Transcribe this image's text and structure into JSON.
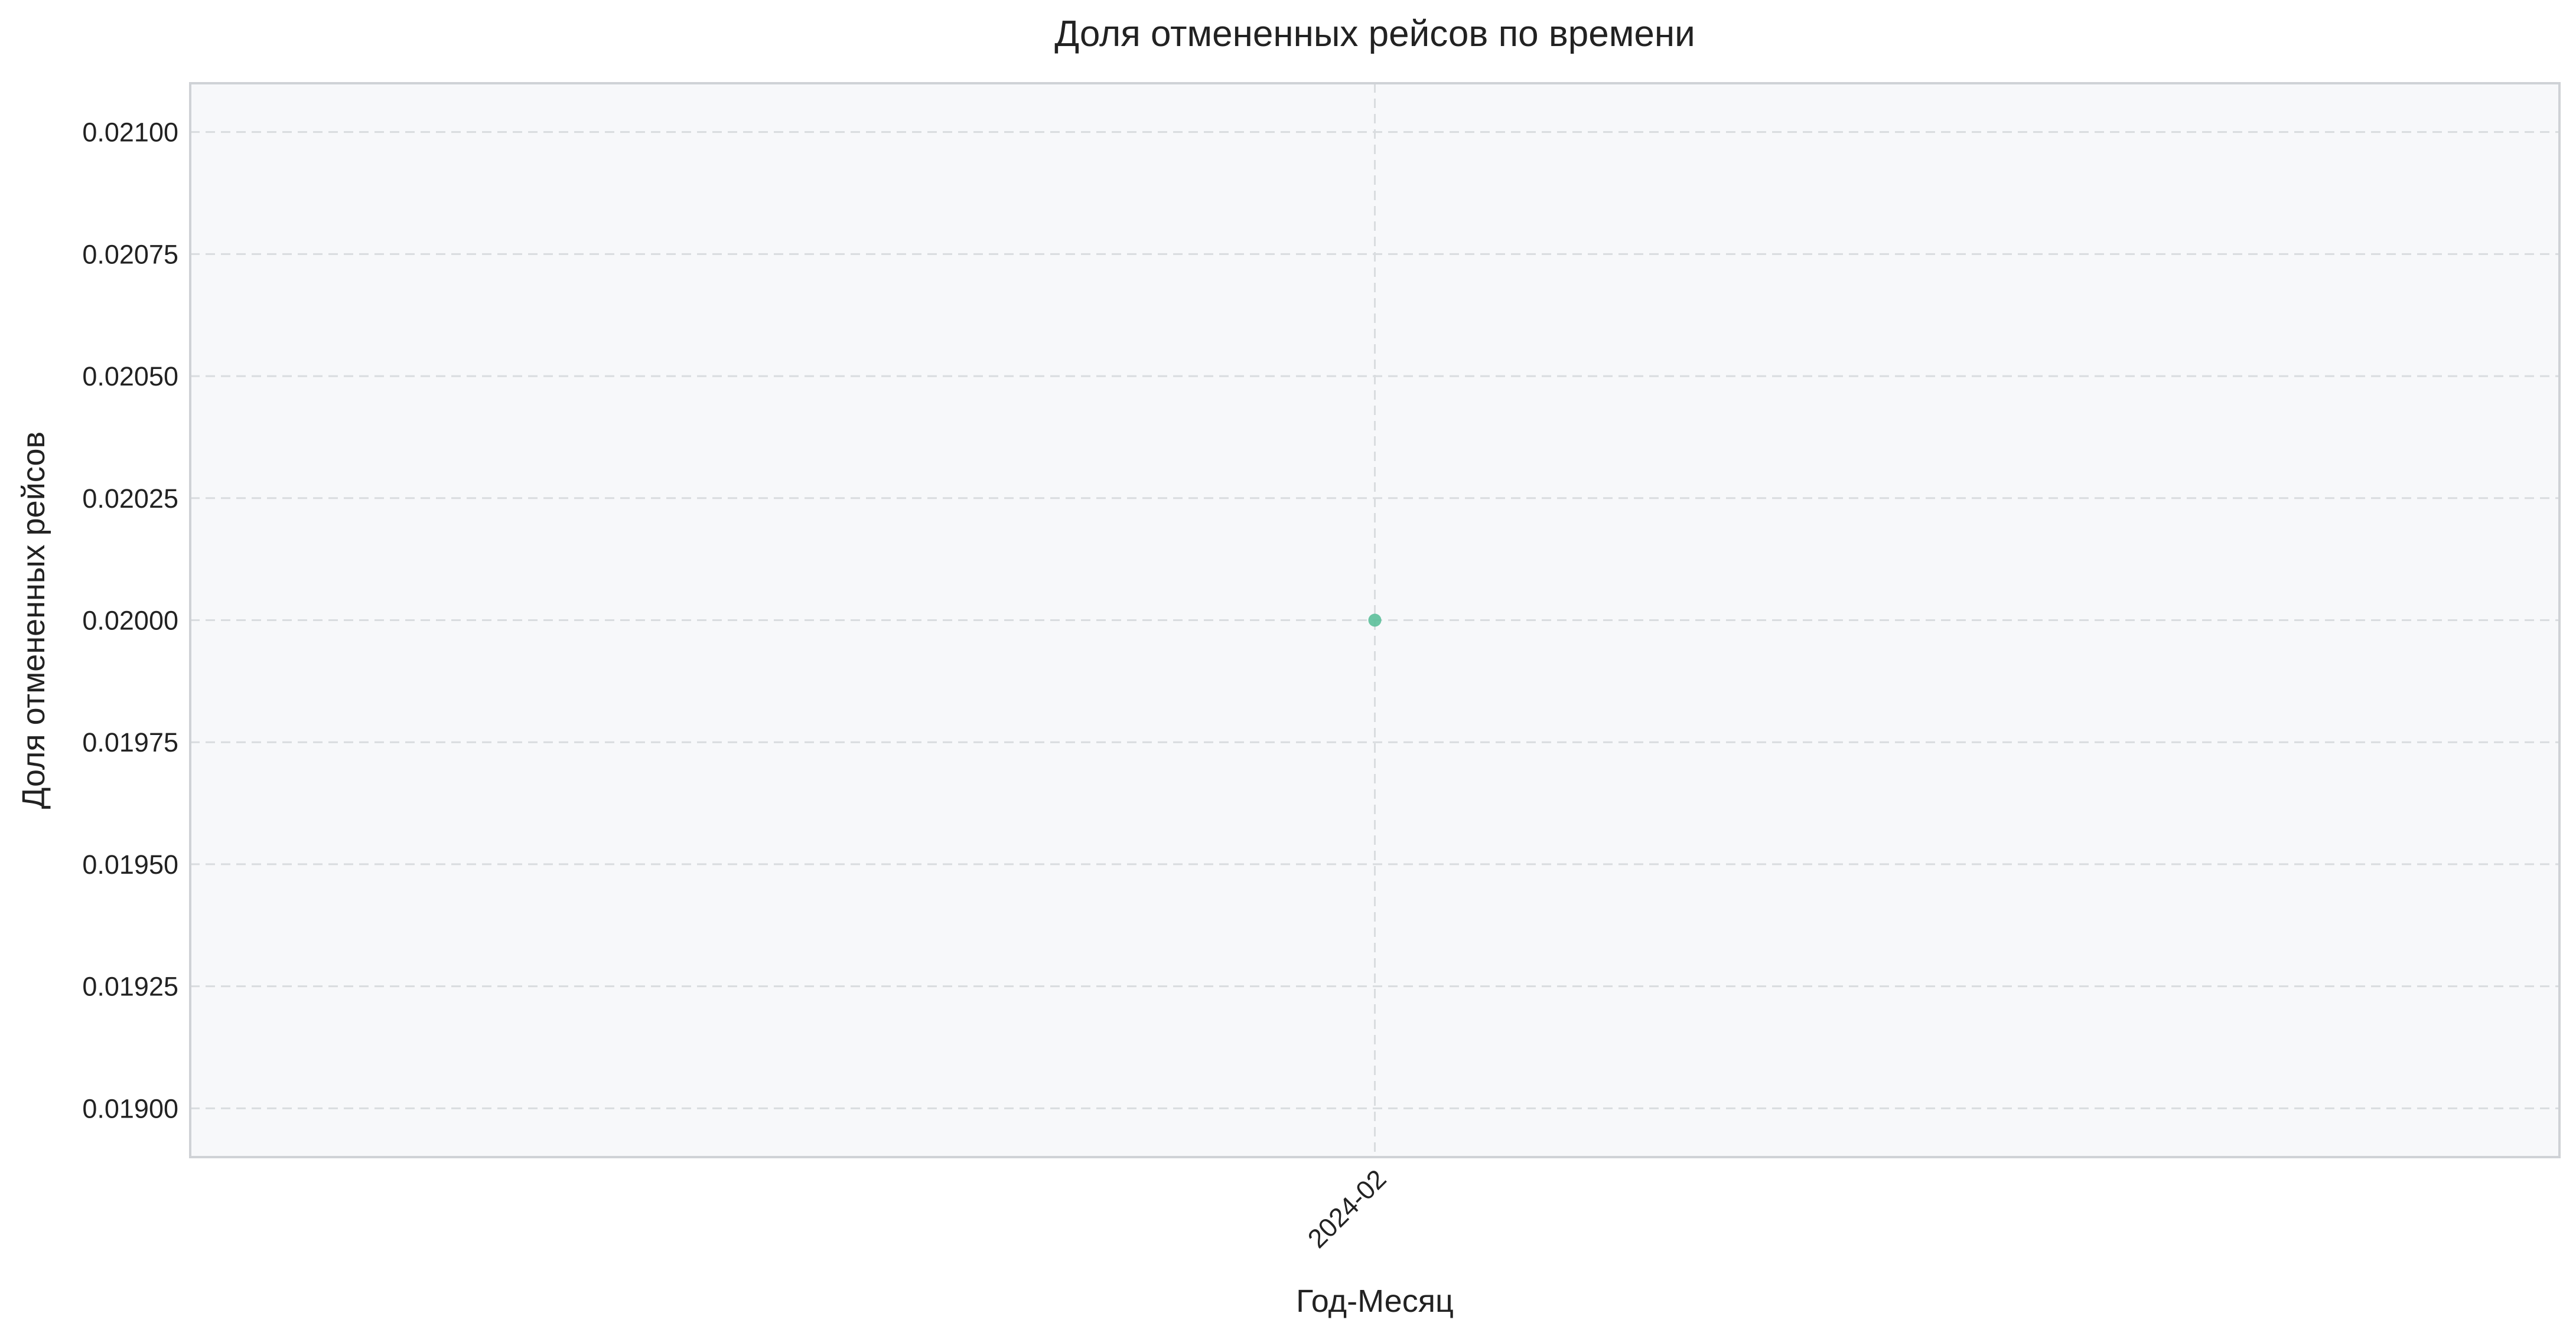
{
  "chart_data": {
    "type": "scatter",
    "title": "Доля отмененных рейсов по времени",
    "xlabel": "Год-Месяц",
    "ylabel": "Доля отмененных рейсов",
    "categories": [
      "2024-02"
    ],
    "series": [
      {
        "x": [
          "2024-02"
        ],
        "values": [
          0.02
        ]
      }
    ],
    "ylim": [
      0.0189,
      0.0211
    ],
    "yticks": [
      0.019,
      0.01925,
      0.0195,
      0.01975,
      0.02,
      0.02025,
      0.0205,
      0.02075,
      0.021
    ],
    "ytick_labels": [
      "0.01900",
      "0.01925",
      "0.01950",
      "0.01975",
      "0.02000",
      "0.02025",
      "0.02050",
      "0.02075",
      "0.02100"
    ],
    "xtick_labels": [
      "2024-02"
    ],
    "grid": true,
    "grid_style": "dashed",
    "legend": "none",
    "colors": {
      "point": "#5bbf9a",
      "plot_background": "#f7f8fa",
      "grid": "#d9dcdf",
      "frame": "#cfd2d6",
      "text": "#222222"
    }
  }
}
